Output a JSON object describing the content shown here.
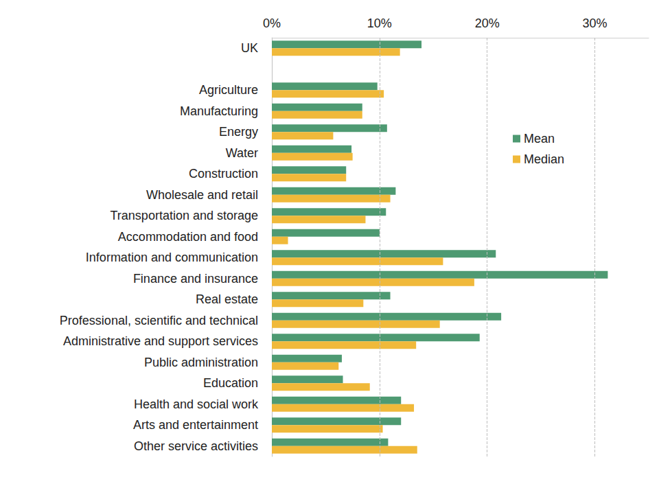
{
  "chart_data": {
    "type": "bar",
    "orientation": "horizontal",
    "categories": [
      "UK",
      null,
      "Agriculture",
      "Manufacturing",
      "Energy",
      "Water",
      "Construction",
      "Wholesale and retail",
      "Transportation and storage",
      "Accommodation and food",
      "Information and communication",
      "Finance and insurance",
      "Real estate",
      "Professional, scientific and technical",
      "Administrative and support services",
      "Public administration",
      "Education",
      "Health and social work",
      "Arts and entertainment",
      "Other service activities"
    ],
    "series": [
      {
        "name": "Mean",
        "color": "#4e9a72",
        "values": [
          13.9,
          null,
          9.8,
          8.4,
          10.7,
          7.4,
          6.9,
          11.5,
          10.6,
          10.0,
          20.8,
          31.2,
          11.0,
          21.3,
          19.3,
          6.5,
          6.6,
          12.0,
          12.0,
          10.8
        ]
      },
      {
        "name": "Median",
        "color": "#f0b93a",
        "values": [
          11.9,
          null,
          10.4,
          8.4,
          5.7,
          7.5,
          6.9,
          11.0,
          8.7,
          1.5,
          15.9,
          18.8,
          8.5,
          15.6,
          13.4,
          6.2,
          9.1,
          13.2,
          10.3,
          13.5
        ]
      }
    ],
    "xlim": [
      0,
      35
    ],
    "xticks": [
      {
        "value": 0,
        "label": "0%"
      },
      {
        "value": 10,
        "label": "10%"
      },
      {
        "value": 20,
        "label": "20%"
      },
      {
        "value": 30,
        "label": "30%"
      }
    ],
    "grid": true,
    "legend": "right"
  }
}
